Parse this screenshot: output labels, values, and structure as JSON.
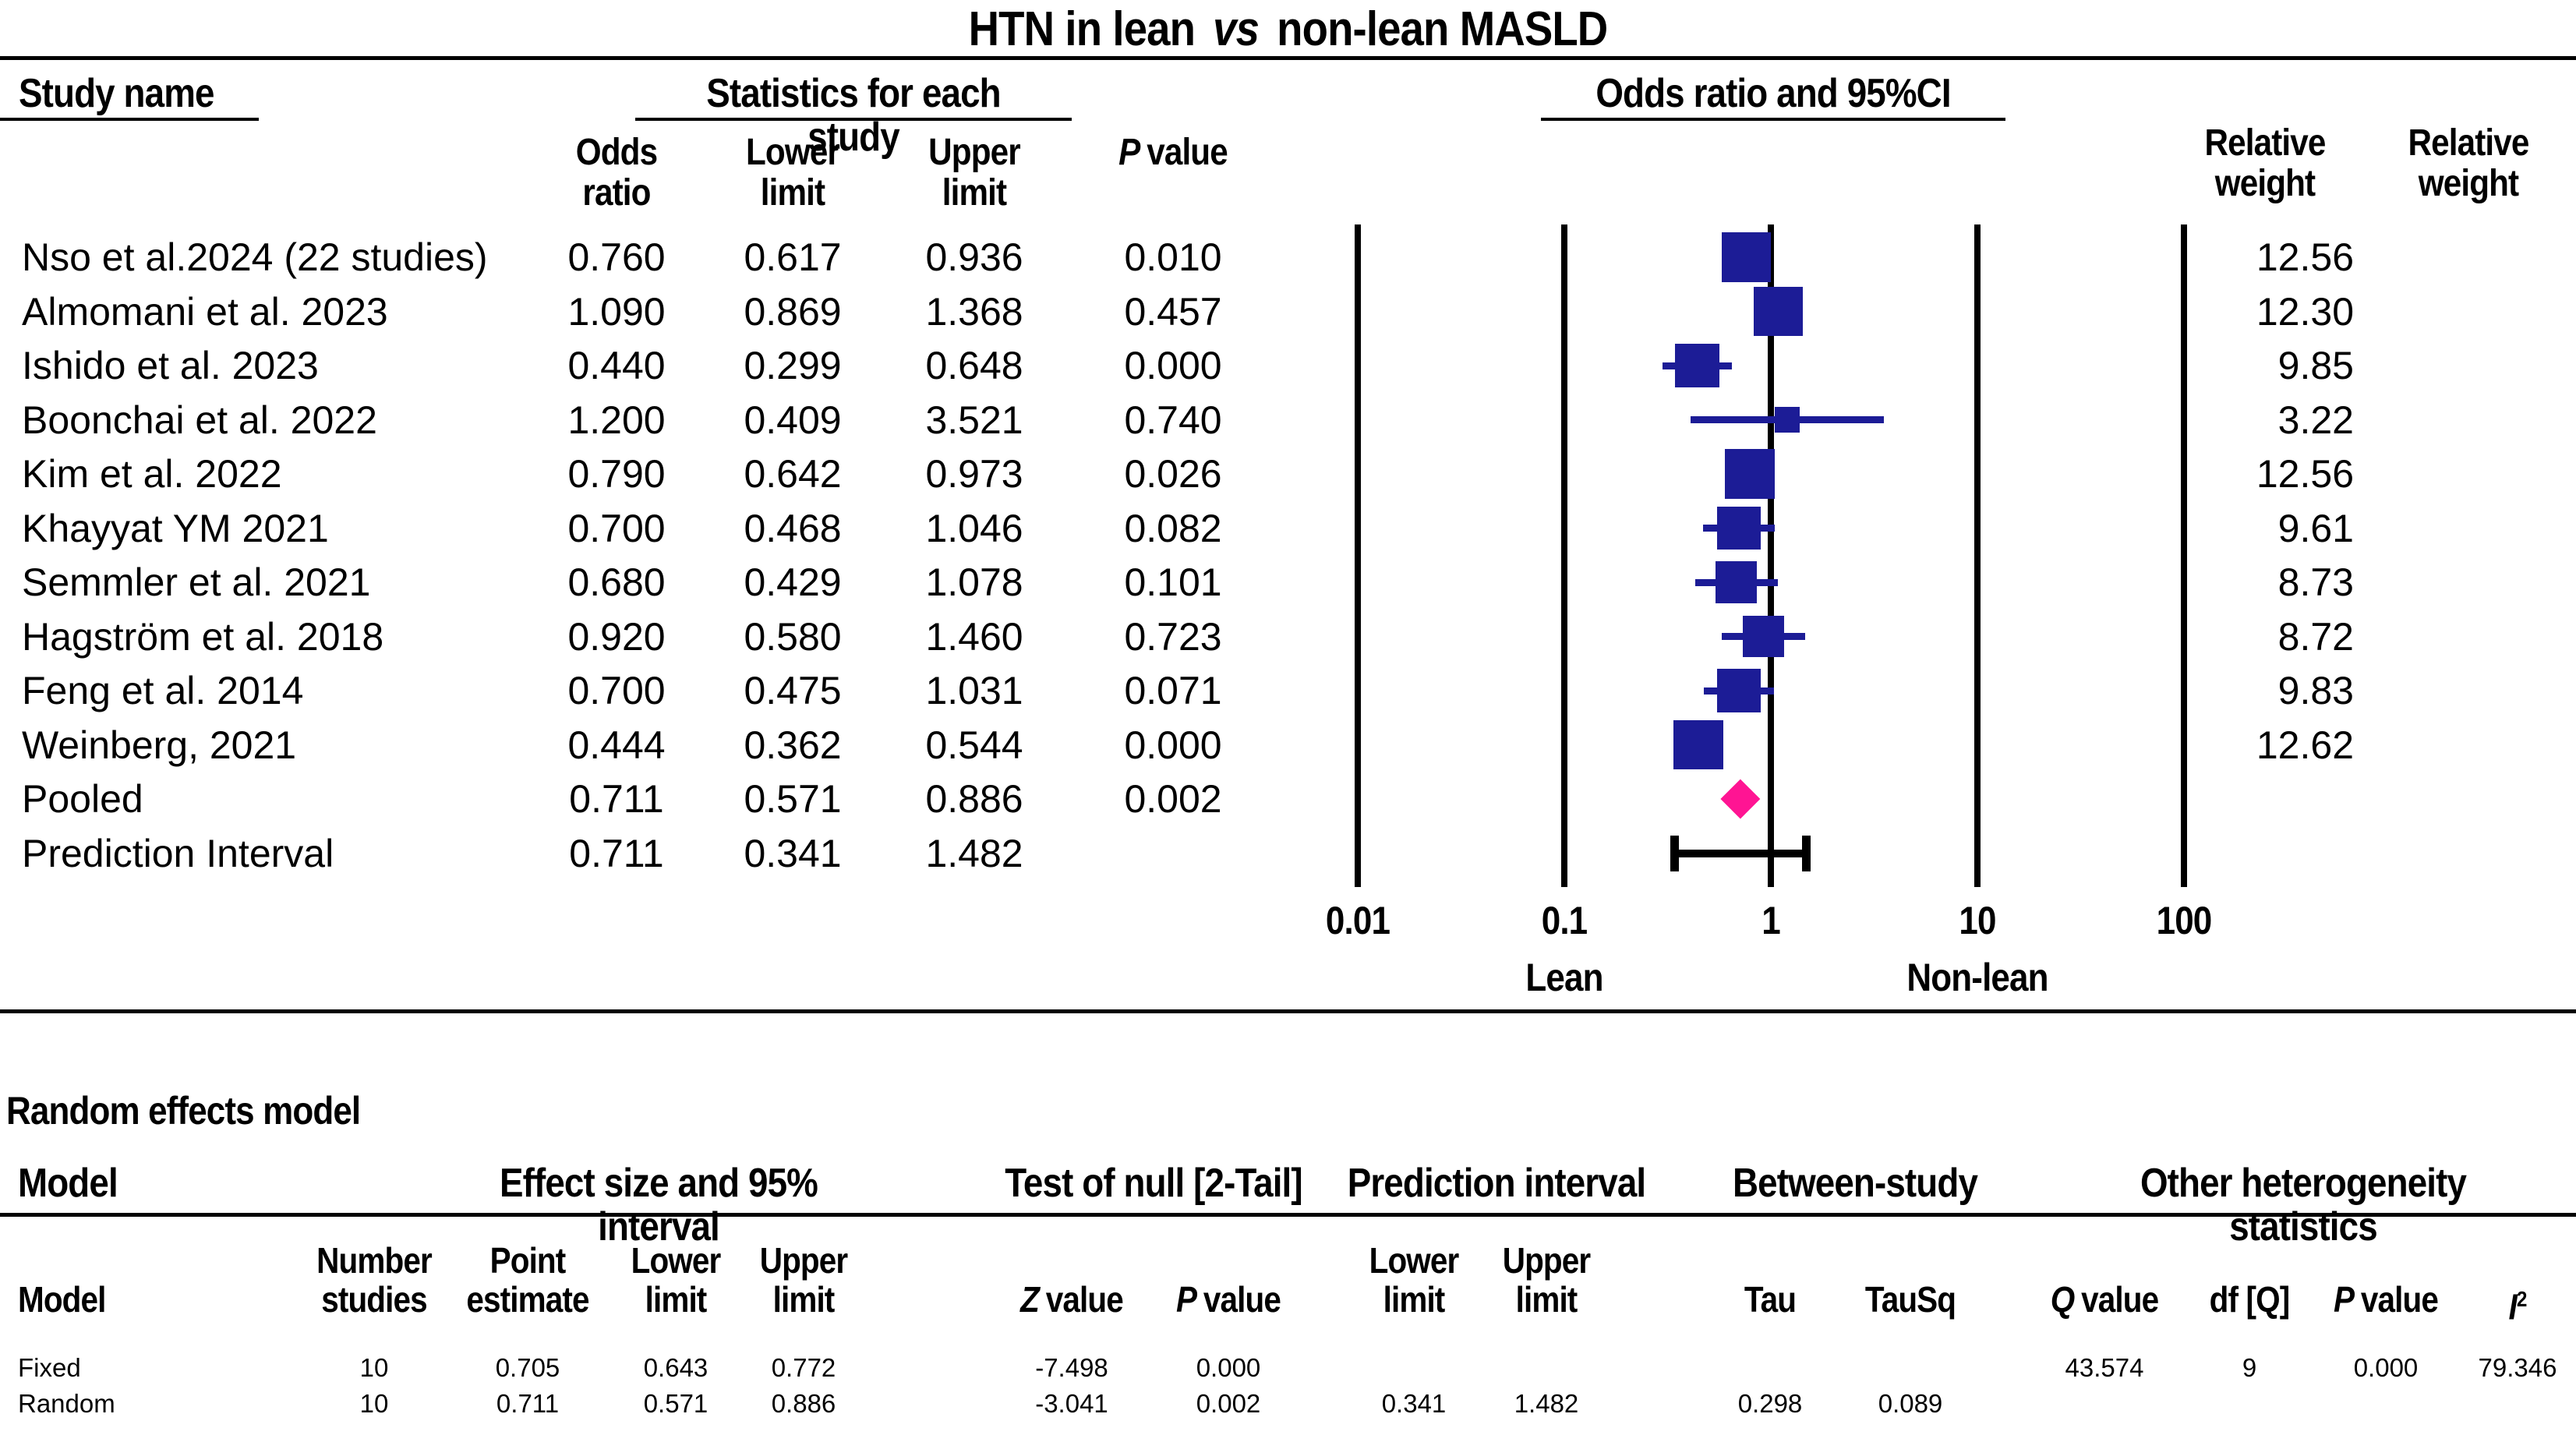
{
  "title": {
    "prefix": "HTN in lean",
    "italic": "vs",
    "suffix": "non-lean MASLD"
  },
  "forest_table": {
    "headers": {
      "study_name": "Study name",
      "stats_group": "Statistics for each study",
      "plot_group": "Odds ratio and 95%CI",
      "odds_ratio": "Odds\nratio",
      "lower_limit": "Lower\nlimit",
      "upper_limit": "Upper\nlimit",
      "p_value": {
        "sym": "P",
        "rest": "value"
      },
      "relative_weight_1": "Relative\nweight",
      "relative_weight_2": "Relative\nweight"
    }
  },
  "chart_data": {
    "type": "scatter",
    "subtype": "forest-plot",
    "title": "HTN in lean vs non-lean MASLD",
    "x_scale": "log10",
    "xlim": [
      0.01,
      100
    ],
    "tick_labels": [
      "0.01",
      "0.1",
      "1",
      "10",
      "100"
    ],
    "axis_group_labels": {
      "left": "Lean",
      "left_anchor": 0.1,
      "right": "Non-lean",
      "right_anchor": 10
    },
    "legend": "none",
    "grid": "vertical-log-decades",
    "colors": {
      "square": "#1c1c96",
      "diamond": "#ff1493",
      "interval": "#000000"
    },
    "rows": [
      {
        "name": "Nso et al.2024 (22 studies)",
        "or": "0.760",
        "lower": "0.617",
        "upper": "0.936",
        "p": "0.010",
        "weight": "12.56",
        "marker": "square"
      },
      {
        "name": "Almomani et al. 2023",
        "or": "1.090",
        "lower": "0.869",
        "upper": "1.368",
        "p": "0.457",
        "weight": "12.30",
        "marker": "square"
      },
      {
        "name": "Ishido et al. 2023",
        "or": "0.440",
        "lower": "0.299",
        "upper": "0.648",
        "p": "0.000",
        "weight": "9.85",
        "marker": "square"
      },
      {
        "name": "Boonchai et al. 2022",
        "or": "1.200",
        "lower": "0.409",
        "upper": "3.521",
        "p": "0.740",
        "weight": "3.22",
        "marker": "square"
      },
      {
        "name": "Kim et al. 2022",
        "or": "0.790",
        "lower": "0.642",
        "upper": "0.973",
        "p": "0.026",
        "weight": "12.56",
        "marker": "square"
      },
      {
        "name": "Khayyat YM 2021",
        "or": "0.700",
        "lower": "0.468",
        "upper": "1.046",
        "p": "0.082",
        "weight": "9.61",
        "marker": "square"
      },
      {
        "name": "Semmler et al. 2021",
        "or": "0.680",
        "lower": "0.429",
        "upper": "1.078",
        "p": "0.101",
        "weight": "8.73",
        "marker": "square"
      },
      {
        "name": "Hagström et al. 2018",
        "or": "0.920",
        "lower": "0.580",
        "upper": "1.460",
        "p": "0.723",
        "weight": "8.72",
        "marker": "square"
      },
      {
        "name": "Feng et al. 2014",
        "or": "0.700",
        "lower": "0.475",
        "upper": "1.031",
        "p": "0.071",
        "weight": "9.83",
        "marker": "square"
      },
      {
        "name": "Weinberg, 2021",
        "or": "0.444",
        "lower": "0.362",
        "upper": "0.544",
        "p": "0.000",
        "weight": "12.62",
        "marker": "square"
      },
      {
        "name": "Pooled",
        "or": "0.711",
        "lower": "0.571",
        "upper": "0.886",
        "p": "0.002",
        "weight": "",
        "marker": "diamond"
      },
      {
        "name": "Prediction Interval",
        "or": "0.711",
        "lower": "0.341",
        "upper": "1.482",
        "p": "",
        "weight": "",
        "marker": "interval"
      }
    ]
  },
  "model_table": {
    "section_title": "Random effects model",
    "group_headers": {
      "model": "Model",
      "effect": "Effect size and 95% interval",
      "null_test": "Test of null [2-Tail]",
      "prediction": "Prediction interval",
      "between": "Between-study",
      "other": "Other heterogeneity statistics"
    },
    "col_headers": {
      "model": "Model",
      "n_studies": "Number\nstudies",
      "point": "Point\nestimate",
      "lower": "Lower\nlimit",
      "upper": "Upper\nlimit",
      "z_value": {
        "sym": "Z",
        "rest": "value"
      },
      "p_value": {
        "sym": "P",
        "rest": "value"
      },
      "pi_lower": "Lower\nlimit",
      "pi_upper": "Upper\nlimit",
      "tau": "Tau",
      "tausq": "TauSq",
      "q_value": {
        "sym": "Q",
        "rest": "value"
      },
      "df_q": "df [Q]",
      "p_value2": {
        "sym": "P",
        "rest": "value"
      },
      "i2": {
        "sym": "I",
        "sup": "2"
      }
    },
    "rows": [
      {
        "model": "Fixed",
        "n": "10",
        "point": "0.705",
        "lower": "0.643",
        "upper": "0.772",
        "z": "-7.498",
        "p": "0.000",
        "pi_lower": "",
        "pi_upper": "",
        "tau": "",
        "tausq": "",
        "q": "43.574",
        "df": "9",
        "p2": "0.000",
        "i2": "79.346"
      },
      {
        "model": "Random",
        "n": "10",
        "point": "0.711",
        "lower": "0.571",
        "upper": "0.886",
        "z": "-3.041",
        "p": "0.002",
        "pi_lower": "0.341",
        "pi_upper": "1.482",
        "tau": "0.298",
        "tausq": "0.089",
        "q": "",
        "df": "",
        "p2": "",
        "i2": ""
      }
    ]
  }
}
